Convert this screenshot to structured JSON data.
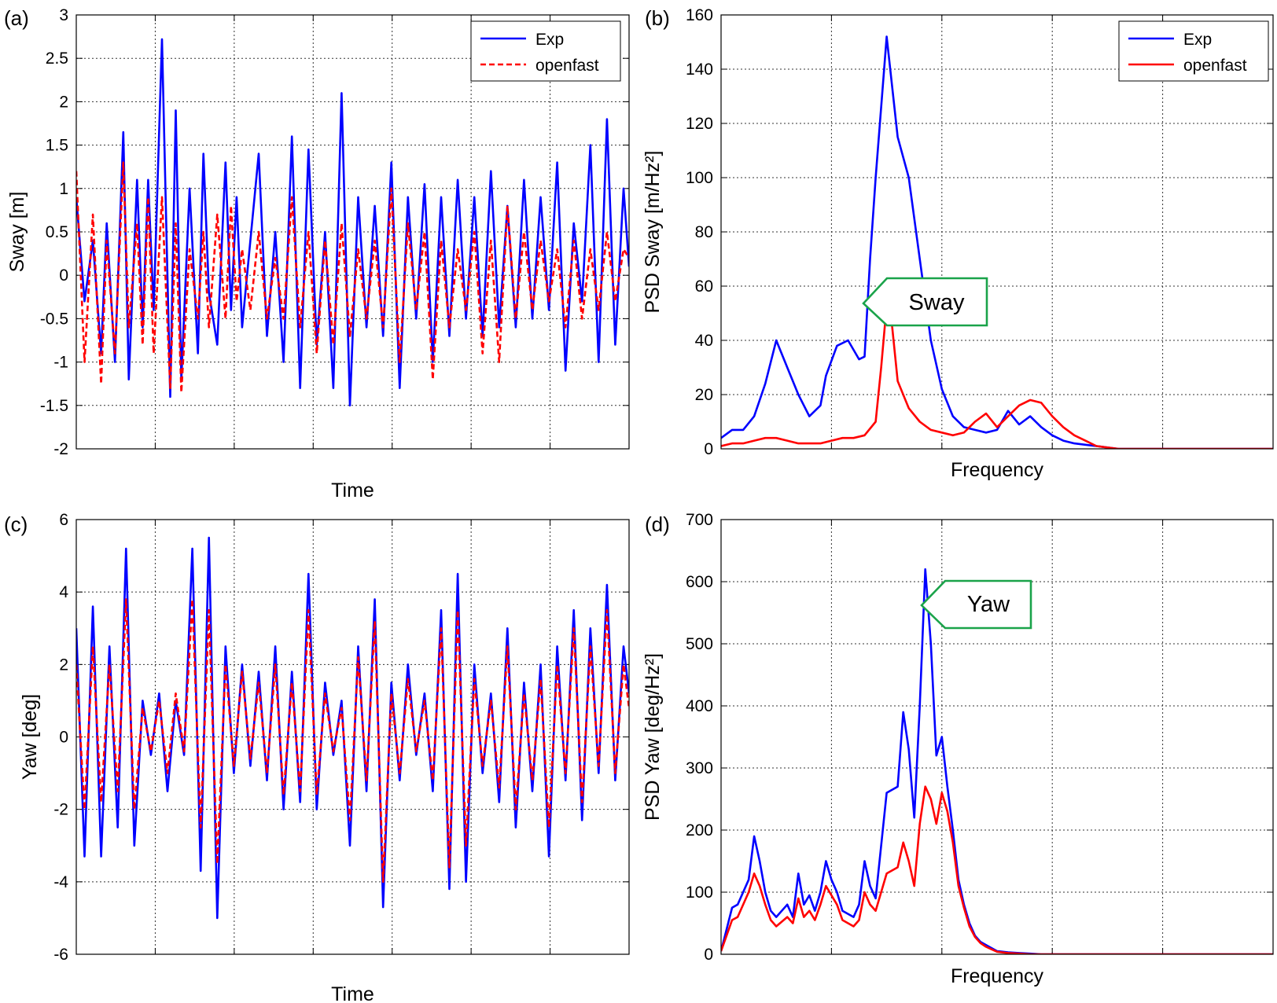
{
  "chart_data": [
    {
      "panel_label": "(a)",
      "type": "line",
      "xlabel": "Time",
      "ylabel": "Sway [m]",
      "ylim": [
        -2,
        3
      ],
      "yticks": [
        -2,
        -1.5,
        -1,
        -0.5,
        0,
        0.5,
        1,
        1.5,
        2,
        2.5,
        3
      ],
      "ytick_labels": [
        "-2",
        "-1.5",
        "-1",
        "-0.5",
        "0",
        "0.5",
        "1",
        "1.5",
        "2",
        "2.5",
        "3"
      ],
      "xlim": [
        0,
        100
      ],
      "xtick_labels_shown": false,
      "grid": true,
      "legend": {
        "placement": "top-right",
        "entries": [
          "Exp",
          "openfast"
        ]
      },
      "series": [
        {
          "name": "Exp",
          "color": "#0000ff",
          "dash": "solid",
          "x": [
            0,
            1.5,
            3,
            4.5,
            5.5,
            7,
            8.5,
            9.5,
            11,
            12,
            13,
            14,
            15.5,
            17,
            18,
            19,
            20.5,
            22,
            23,
            24,
            25.5,
            27,
            28,
            29,
            30,
            31.5,
            33,
            34.5,
            36,
            37.5,
            39,
            40.5,
            42,
            43.5,
            45,
            46.5,
            48,
            49.5,
            51,
            52.5,
            54,
            55.5,
            57,
            58.5,
            60,
            61.5,
            63,
            64.5,
            66,
            67.5,
            69,
            70.5,
            72,
            73.5,
            75,
            76.5,
            78,
            79.5,
            81,
            82.5,
            84,
            85.5,
            87,
            88.5,
            90,
            91.5,
            93,
            94.5,
            96,
            97.5,
            99,
            100
          ],
          "values": [
            0.9,
            -0.3,
            0.4,
            -0.9,
            0.6,
            -1,
            1.65,
            -1.2,
            1.1,
            -0.6,
            1.1,
            -0.4,
            2.72,
            -1.4,
            1.9,
            -1.2,
            1,
            -0.9,
            1.4,
            -0.2,
            -0.8,
            1.3,
            -0.4,
            0.9,
            -0.6,
            0.4,
            1.4,
            -0.7,
            0.5,
            -1,
            1.6,
            -1.3,
            1.45,
            -0.8,
            0.5,
            -1.3,
            2.1,
            -1.5,
            0.9,
            -0.6,
            0.8,
            -0.7,
            1.3,
            -1.3,
            0.9,
            -0.5,
            1.05,
            -1,
            0.9,
            -0.7,
            1.1,
            -0.5,
            0.9,
            -0.7,
            1.2,
            -0.6,
            0.8,
            -0.6,
            1.1,
            -0.5,
            0.9,
            -0.4,
            1.3,
            -1.1,
            0.6,
            -0.3,
            1.5,
            -1,
            1.8,
            -0.8,
            1,
            0.1
          ]
        },
        {
          "name": "openfast",
          "color": "#ff0000",
          "dash": "dashed",
          "x": [
            0,
            1.5,
            3,
            4.5,
            5.5,
            7,
            8.5,
            9.5,
            11,
            12,
            13,
            14,
            15.5,
            17,
            18,
            19,
            20.5,
            22,
            23,
            24,
            25.5,
            27,
            28,
            29,
            30,
            31.5,
            33,
            34.5,
            36,
            37.5,
            39,
            40.5,
            42,
            43.5,
            45,
            46.5,
            48,
            49.5,
            51,
            52.5,
            54,
            55.5,
            57,
            58.5,
            60,
            61.5,
            63,
            64.5,
            66,
            67.5,
            69,
            70.5,
            72,
            73.5,
            75,
            76.5,
            78,
            79.5,
            81,
            82.5,
            84,
            85.5,
            87,
            88.5,
            90,
            91.5,
            93,
            94.5,
            96,
            97.5,
            99,
            100
          ],
          "values": [
            1.2,
            -1,
            0.7,
            -1.25,
            0.4,
            -0.9,
            1.3,
            -0.6,
            0.6,
            -0.8,
            0.9,
            -0.9,
            0.9,
            -1.3,
            0.6,
            -1.35,
            0.3,
            -0.5,
            0.5,
            -0.6,
            0.7,
            -0.5,
            0.8,
            -0.3,
            0.3,
            -0.4,
            0.5,
            -0.5,
            0.2,
            -0.5,
            0.9,
            -0.6,
            0.5,
            -0.9,
            0.4,
            -0.8,
            0.6,
            -0.7,
            0.3,
            -0.5,
            0.4,
            -0.6,
            1,
            -1,
            0.6,
            -0.4,
            0.5,
            -1.2,
            0.4,
            -0.6,
            0.3,
            -0.4,
            0.5,
            -0.9,
            0.4,
            -1,
            0.8,
            -0.5,
            0.5,
            -0.4,
            0.4,
            -0.3,
            0.3,
            -0.6,
            0.4,
            -0.5,
            0.3,
            -0.4,
            0.5,
            -0.3,
            0.3,
            0.2
          ]
        }
      ]
    },
    {
      "panel_label": "(b)",
      "type": "line",
      "xlabel": "Frequency",
      "ylabel": "PSD Sway [m/Hz²]",
      "ylim": [
        0,
        160
      ],
      "yticks": [
        0,
        20,
        40,
        60,
        80,
        100,
        120,
        140,
        160
      ],
      "ytick_labels": [
        "0",
        "20",
        "40",
        "60",
        "80",
        "100",
        "120",
        "140",
        "160"
      ],
      "xlim": [
        0,
        100
      ],
      "xtick_labels_shown": false,
      "grid": true,
      "legend": {
        "placement": "top-right",
        "entries": [
          "Exp",
          "openfast"
        ]
      },
      "annotation": {
        "text": "Sway",
        "color": "#1aa34a"
      },
      "series": [
        {
          "name": "Exp",
          "color": "#0000ff",
          "dash": "solid",
          "x": [
            0,
            2,
            4,
            6,
            8,
            10,
            12,
            14,
            16,
            18,
            19,
            21,
            23,
            25,
            26,
            27,
            28,
            30,
            32,
            34,
            36,
            38,
            40,
            42,
            44,
            46,
            48,
            50,
            52,
            54,
            56,
            58,
            60,
            62,
            64,
            66,
            68,
            70,
            72,
            74,
            100
          ],
          "values": [
            4,
            7,
            7,
            12,
            24,
            40,
            30,
            20,
            12,
            16,
            27,
            38,
            40,
            33,
            34,
            70,
            100,
            152,
            115,
            100,
            70,
            40,
            22,
            12,
            8,
            7,
            6,
            7,
            14,
            9,
            12,
            8,
            5,
            3,
            2,
            1.5,
            1,
            0.5,
            0,
            0,
            0
          ]
        },
        {
          "name": "openfast",
          "color": "#ff0000",
          "dash": "solid",
          "x": [
            0,
            2,
            4,
            6,
            8,
            10,
            12,
            14,
            16,
            18,
            20,
            22,
            24,
            26,
            28,
            29,
            30,
            31,
            32,
            34,
            36,
            38,
            40,
            42,
            44,
            46,
            48,
            50,
            52,
            54,
            56,
            58,
            60,
            62,
            64,
            66,
            68,
            70,
            72,
            74,
            100
          ],
          "values": [
            1,
            2,
            2,
            3,
            4,
            4,
            3,
            2,
            2,
            2,
            3,
            4,
            4,
            5,
            10,
            30,
            53,
            45,
            25,
            15,
            10,
            7,
            6,
            5,
            6,
            10,
            13,
            8,
            12,
            16,
            18,
            17,
            12,
            8,
            5,
            3,
            1,
            0.5,
            0,
            0,
            0
          ]
        }
      ]
    },
    {
      "panel_label": "(c)",
      "type": "line",
      "xlabel": "Time",
      "ylabel": "Yaw [deg]",
      "ylim": [
        -6,
        6
      ],
      "yticks": [
        -6,
        -4,
        -2,
        0,
        2,
        4,
        6
      ],
      "ytick_labels": [
        "-6",
        "-4",
        "-2",
        "0",
        "2",
        "4",
        "6"
      ],
      "xlim": [
        0,
        100
      ],
      "xtick_labels_shown": false,
      "grid": true,
      "series": [
        {
          "name": "Exp",
          "color": "#0000ff",
          "dash": "solid",
          "x": [
            0,
            1.5,
            3,
            4.5,
            6,
            7.5,
            9,
            10.5,
            12,
            13.5,
            15,
            16.5,
            18,
            19.5,
            21,
            22.5,
            24,
            25.5,
            27,
            28.5,
            30,
            31.5,
            33,
            34.5,
            36,
            37.5,
            39,
            40.5,
            42,
            43.5,
            45,
            46.5,
            48,
            49.5,
            51,
            52.5,
            54,
            55.5,
            57,
            58.5,
            60,
            61.5,
            63,
            64.5,
            66,
            67.5,
            69,
            70.5,
            72,
            73.5,
            75,
            76.5,
            78,
            79.5,
            81,
            82.5,
            84,
            85.5,
            87,
            88.5,
            90,
            91.5,
            93,
            94.5,
            96,
            97.5,
            99,
            100
          ],
          "values": [
            3,
            -3.3,
            3.6,
            -3.3,
            2.5,
            -2.5,
            5.2,
            -3,
            1,
            -0.5,
            1.2,
            -1.5,
            1,
            -0.5,
            5.2,
            -3.7,
            5.5,
            -5,
            2.5,
            -1,
            2,
            -0.8,
            1.8,
            -1.2,
            2.5,
            -2,
            1.8,
            -1.8,
            4.5,
            -2,
            1.5,
            -0.5,
            1,
            -3,
            2.5,
            -1.5,
            3.8,
            -4.7,
            1.5,
            -1.2,
            2,
            -0.5,
            1.2,
            -1.5,
            3.5,
            -4.2,
            4.5,
            -4,
            2,
            -1,
            1.2,
            -1.8,
            3,
            -2.5,
            1.5,
            -1.5,
            2,
            -3.3,
            2.5,
            -1.2,
            3.5,
            -2.3,
            3,
            -1,
            4.2,
            -1.2,
            2.5,
            1.2
          ]
        },
        {
          "name": "openfast",
          "color": "#ff0000",
          "dash": "dashed",
          "x": [
            0,
            1.5,
            3,
            4.5,
            6,
            7.5,
            9,
            10.5,
            12,
            13.5,
            15,
            16.5,
            18,
            19.5,
            21,
            22.5,
            24,
            25.5,
            27,
            28.5,
            30,
            31.5,
            33,
            34.5,
            36,
            37.5,
            39,
            40.5,
            42,
            43.5,
            45,
            46.5,
            48,
            49.5,
            51,
            52.5,
            54,
            55.5,
            57,
            58.5,
            60,
            61.5,
            63,
            64.5,
            66,
            67.5,
            69,
            70.5,
            72,
            73.5,
            75,
            76.5,
            78,
            79.5,
            81,
            82.5,
            84,
            85.5,
            87,
            88.5,
            90,
            91.5,
            93,
            94.5,
            96,
            97.5,
            99,
            100
          ],
          "values": [
            2,
            -2,
            2.5,
            -1.8,
            2,
            -1.5,
            3.8,
            -2,
            0.8,
            -0.4,
            1,
            -1,
            1.2,
            -0.4,
            3.8,
            -2.5,
            3.5,
            -3.5,
            2,
            -0.8,
            1.8,
            -0.6,
            1.5,
            -1,
            2,
            -1.6,
            1.5,
            -1.5,
            3.5,
            -1.6,
            1.2,
            -0.4,
            0.8,
            -2.3,
            2.2,
            -1.2,
            3.2,
            -4,
            1.2,
            -1,
            1.6,
            -0.4,
            1,
            -1.2,
            3,
            -3.6,
            3.5,
            -3,
            1.6,
            -0.8,
            1,
            -1.4,
            2.5,
            -2,
            1.2,
            -1.2,
            1.6,
            -2.5,
            2,
            -1,
            3,
            -1.8,
            2.5,
            -0.8,
            3.5,
            -1,
            2,
            0.8
          ]
        }
      ]
    },
    {
      "panel_label": "(d)",
      "type": "line",
      "xlabel": "Frequency",
      "ylabel": "PSD Yaw [deg/Hz²]",
      "ylim": [
        0,
        700
      ],
      "yticks": [
        0,
        100,
        200,
        300,
        400,
        500,
        600,
        700
      ],
      "ytick_labels": [
        "0",
        "100",
        "200",
        "300",
        "400",
        "500",
        "600",
        "700"
      ],
      "xlim": [
        0,
        100
      ],
      "xtick_labels_shown": false,
      "grid": true,
      "annotation": {
        "text": "Yaw",
        "color": "#1aa34a"
      },
      "series": [
        {
          "name": "Exp",
          "color": "#0000ff",
          "dash": "solid",
          "x": [
            0,
            1,
            2,
            3,
            5,
            6,
            7,
            8,
            9,
            10,
            12,
            13,
            14,
            15,
            16,
            17,
            18,
            19,
            20,
            21,
            22,
            24,
            25,
            26,
            27,
            28,
            30,
            32,
            33,
            34,
            35,
            36,
            37,
            38,
            39,
            40,
            41,
            42,
            43,
            44,
            45,
            46,
            47,
            48,
            49,
            50,
            52,
            54,
            56,
            58,
            60,
            62,
            64,
            66,
            70,
            100
          ],
          "values": [
            5,
            40,
            75,
            80,
            120,
            190,
            150,
            100,
            70,
            60,
            80,
            60,
            130,
            80,
            95,
            70,
            100,
            150,
            120,
            100,
            70,
            60,
            80,
            150,
            110,
            90,
            260,
            270,
            390,
            330,
            220,
            400,
            620,
            500,
            320,
            350,
            270,
            200,
            120,
            80,
            50,
            30,
            20,
            15,
            10,
            5,
            3,
            2,
            1,
            0,
            0,
            0,
            0,
            0,
            0,
            0
          ]
        },
        {
          "name": "openfast",
          "color": "#ff0000",
          "dash": "solid",
          "x": [
            0,
            1,
            2,
            3,
            5,
            6,
            7,
            8,
            9,
            10,
            12,
            13,
            14,
            15,
            16,
            17,
            18,
            19,
            20,
            21,
            22,
            24,
            25,
            26,
            27,
            28,
            30,
            32,
            33,
            34,
            35,
            36,
            37,
            38,
            39,
            40,
            41,
            42,
            43,
            44,
            45,
            46,
            47,
            48,
            49,
            50,
            52,
            54,
            56,
            58,
            60,
            62,
            64,
            66,
            70,
            100
          ],
          "values": [
            5,
            30,
            55,
            60,
            100,
            130,
            110,
            80,
            55,
            45,
            60,
            50,
            90,
            60,
            70,
            55,
            80,
            110,
            95,
            80,
            55,
            45,
            55,
            100,
            80,
            70,
            130,
            140,
            180,
            150,
            110,
            210,
            270,
            250,
            210,
            260,
            230,
            180,
            110,
            75,
            45,
            28,
            18,
            12,
            8,
            4,
            2,
            1,
            0,
            0,
            0,
            0,
            0,
            0,
            0,
            0
          ]
        }
      ]
    }
  ]
}
